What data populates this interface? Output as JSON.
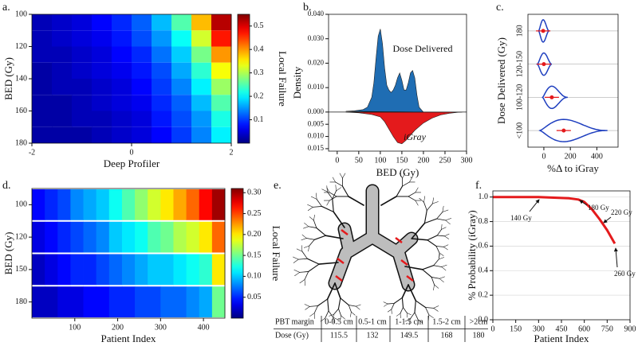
{
  "chart_data": [
    {
      "type": "heatmap",
      "label": "a.",
      "xlabel": "Deep Profiler",
      "ylabel": "BED (Gy)",
      "colorbar_label": "Local Failure",
      "colormap": "jet",
      "x": [
        -1.8,
        -1.4,
        -1.0,
        -0.6,
        -0.2,
        0.2,
        0.6,
        1.0,
        1.4,
        1.8
      ],
      "y": [
        105,
        115,
        125,
        135,
        145,
        155,
        165,
        175
      ],
      "z": [
        [
          0.03,
          0.04,
          0.05,
          0.07,
          0.09,
          0.12,
          0.17,
          0.25,
          0.38,
          0.52
        ],
        [
          0.03,
          0.04,
          0.05,
          0.06,
          0.08,
          0.11,
          0.15,
          0.21,
          0.32,
          0.47
        ],
        [
          0.03,
          0.03,
          0.04,
          0.05,
          0.07,
          0.09,
          0.13,
          0.18,
          0.27,
          0.4
        ],
        [
          0.02,
          0.03,
          0.04,
          0.05,
          0.06,
          0.08,
          0.11,
          0.16,
          0.23,
          0.34
        ],
        [
          0.02,
          0.03,
          0.03,
          0.04,
          0.05,
          0.07,
          0.1,
          0.14,
          0.2,
          0.29
        ],
        [
          0.02,
          0.02,
          0.03,
          0.04,
          0.05,
          0.06,
          0.09,
          0.12,
          0.17,
          0.25
        ],
        [
          0.02,
          0.02,
          0.03,
          0.03,
          0.04,
          0.05,
          0.08,
          0.11,
          0.15,
          0.22
        ],
        [
          0.02,
          0.02,
          0.02,
          0.03,
          0.04,
          0.05,
          0.07,
          0.1,
          0.14,
          0.2
        ]
      ],
      "xlim": [
        -2,
        2
      ],
      "xticks": [
        -2,
        0,
        2
      ],
      "ylim": [
        100,
        180
      ],
      "yticks": [
        100,
        120,
        140,
        160,
        180
      ],
      "zlim": [
        0,
        0.55
      ],
      "zticks": [
        0.1,
        0.2,
        0.3,
        0.4,
        0.5
      ]
    },
    {
      "type": "density",
      "label": "b.",
      "xlabel": "BED (Gy)",
      "ylabel": "Density",
      "series": [
        {
          "name": "Dose Delivered",
          "color": "#1f6db3",
          "x": [
            20,
            40,
            60,
            70,
            80,
            85,
            90,
            95,
            100,
            105,
            110,
            115,
            120,
            125,
            130,
            135,
            140,
            145,
            150,
            155,
            160,
            165,
            170,
            175,
            180,
            185,
            190,
            200
          ],
          "values": [
            0.0003,
            0.0005,
            0.001,
            0.002,
            0.006,
            0.012,
            0.022,
            0.031,
            0.034,
            0.028,
            0.018,
            0.011,
            0.009,
            0.008,
            0.009,
            0.011,
            0.014,
            0.016,
            0.013,
            0.009,
            0.009,
            0.012,
            0.016,
            0.017,
            0.014,
            0.007,
            0.002,
            0
          ]
        },
        {
          "name": "iGray",
          "color": "#e41a1c",
          "x": [
            20,
            50,
            80,
            100,
            110,
            120,
            130,
            140,
            150,
            160,
            170,
            180,
            190,
            200,
            220,
            240,
            260,
            280,
            290
          ],
          "values": [
            0,
            -0.0003,
            -0.001,
            -0.002,
            -0.004,
            -0.007,
            -0.01,
            -0.0125,
            -0.013,
            -0.0115,
            -0.0095,
            -0.0075,
            -0.006,
            -0.0045,
            -0.0025,
            -0.0012,
            -0.0005,
            -0.0001,
            0
          ]
        }
      ],
      "xlim": [
        -20,
        300
      ],
      "xticks": [
        0,
        50,
        100,
        150,
        200,
        250,
        300
      ],
      "ylim": [
        -0.016,
        0.04
      ],
      "yticks": [
        {
          "value": 0.04,
          "label": "0.040"
        },
        {
          "value": 0.03,
          "label": "0.030"
        },
        {
          "value": 0.02,
          "label": "0.020"
        },
        {
          "value": 0.01,
          "label": "0.010"
        },
        {
          "value": 0,
          "label": "0.000"
        },
        {
          "value": -0.005,
          "label": "0.005"
        },
        {
          "value": -0.01,
          "label": "0.010"
        },
        {
          "value": -0.015,
          "label": "0.015"
        }
      ]
    },
    {
      "type": "violin",
      "label": "c.",
      "xlabel": "%Δ to iGray",
      "ylabel": "Dose Delivered (Gy)",
      "categories": [
        "180",
        "120-150",
        "100-120",
        "<100"
      ],
      "values": [
        -5,
        0,
        60,
        150
      ],
      "ranges": [
        [
          -40,
          40
        ],
        [
          -50,
          60
        ],
        [
          -10,
          180
        ],
        [
          -30,
          480
        ]
      ],
      "color": "#1f3fbf",
      "median_color": "#e41a1c",
      "xlim": [
        -120,
        560
      ],
      "xticks": [
        0,
        200,
        400
      ]
    },
    {
      "type": "heatmap",
      "label": "d.",
      "xlabel": "Patient Index",
      "ylabel": "BED (Gy)",
      "colorbar_label": "Local Failure",
      "colormap": "jet",
      "x": [
        15,
        45,
        75,
        105,
        135,
        165,
        195,
        225,
        255,
        285,
        315,
        345,
        375,
        405,
        435
      ],
      "categories": [
        "100",
        "120",
        "150",
        "180"
      ],
      "z": [
        [
          0.04,
          0.05,
          0.06,
          0.08,
          0.09,
          0.1,
          0.12,
          0.14,
          0.16,
          0.18,
          0.2,
          0.22,
          0.24,
          0.27,
          0.3
        ],
        [
          0.03,
          0.04,
          0.05,
          0.06,
          0.07,
          0.08,
          0.1,
          0.11,
          0.12,
          0.14,
          0.15,
          0.17,
          0.18,
          0.2,
          0.24
        ],
        [
          0.02,
          0.03,
          0.04,
          0.05,
          0.05,
          0.06,
          0.07,
          0.08,
          0.09,
          0.1,
          0.1,
          0.11,
          0.12,
          0.13,
          0.2
        ],
        [
          0.02,
          0.02,
          0.03,
          0.03,
          0.04,
          0.04,
          0.05,
          0.05,
          0.06,
          0.06,
          0.07,
          0.07,
          0.08,
          0.09,
          0.15
        ]
      ],
      "xlim": [
        0,
        450
      ],
      "xticks": [
        100,
        200,
        300,
        400
      ],
      "zlim": [
        0,
        0.31
      ],
      "zticks": [
        0.05,
        {
          "value": 0.1,
          "label": "0.10"
        },
        0.15,
        {
          "value": 0.2,
          "label": "0.20"
        },
        0.25,
        {
          "value": 0.3,
          "label": "0.30"
        }
      ]
    },
    {
      "type": "diagram",
      "label": "e.",
      "table": {
        "rows": [
          [
            "PBT margin",
            "0-0.5 cm",
            "0.5-1 cm",
            "1-1.5 cm",
            "1.5-2 cm",
            ">2cm"
          ],
          [
            "Dose (Gy)",
            115.5,
            132,
            149.5,
            168,
            180
          ]
        ]
      }
    },
    {
      "type": "line",
      "label": "f.",
      "xlabel": "Patient Index",
      "ylabel": "% Probability (iGray)",
      "color": "#e41a1c",
      "grid": true,
      "x": [
        0,
        100,
        200,
        300,
        400,
        500,
        560,
        600,
        650,
        700,
        750,
        800
      ],
      "values": [
        1,
        1,
        1,
        1,
        0.995,
        0.99,
        0.98,
        0.96,
        0.9,
        0.82,
        0.73,
        0.62
      ],
      "annotations": [
        "140 Gy",
        "180 Gy",
        "220 Gy",
        "260 Gy"
      ],
      "xlim": [
        0,
        900
      ],
      "xticks": [
        0,
        150,
        300,
        450,
        600,
        750,
        900
      ],
      "ylim": [
        0,
        1.05
      ],
      "yticks": [
        {
          "value": 0,
          "label": "0.0"
        },
        0.2,
        0.4,
        0.6,
        0.8,
        {
          "value": 1,
          "label": "1.0"
        }
      ]
    }
  ]
}
